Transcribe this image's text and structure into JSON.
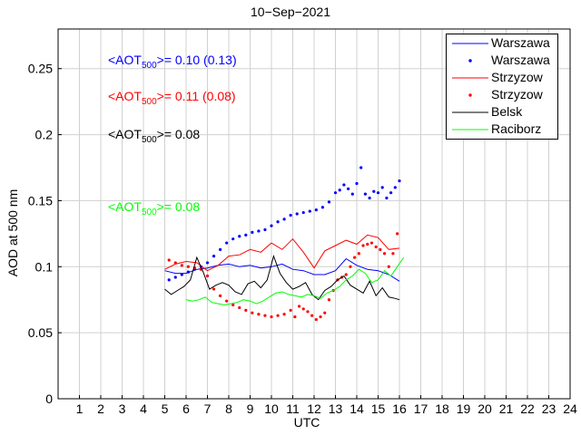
{
  "chart_data": {
    "type": "line",
    "title": "10−Sep−2021",
    "xlabel": "UTC",
    "ylabel": "AOD at 500 nm",
    "xlim": [
      0,
      24
    ],
    "ylim": [
      0,
      0.28
    ],
    "x_ticks": [
      "1",
      "2",
      "3",
      "4",
      "5",
      "6",
      "7",
      "8",
      "9",
      "10",
      "11",
      "12",
      "13",
      "14",
      "15",
      "16",
      "17",
      "18",
      "19",
      "20",
      "21",
      "22",
      "23",
      "24"
    ],
    "y_ticks": [
      "0",
      "0.05",
      "0.1",
      "0.15",
      "0.2",
      "0.25"
    ],
    "grid": true,
    "legend_position": "top-right",
    "annotations": [
      {
        "prefix": "<AOT",
        "sub": "500",
        "suffix": ">= 0.10 (0.13)",
        "color": "#0000ff"
      },
      {
        "prefix": "<AOT",
        "sub": "500",
        "suffix": ">= 0.11 (0.08)",
        "color": "#ff0000"
      },
      {
        "prefix": "<AOT",
        "sub": "500",
        "suffix": ">= 0.08",
        "color": "#000000"
      },
      {
        "prefix": "<AOT",
        "sub": "500",
        "suffix": ">= 0.08",
        "color": "#00ff00"
      }
    ],
    "series": [
      {
        "name": "Warszawa",
        "style": "line",
        "color": "#0000ff",
        "x": [
          5.0,
          5.5,
          6.0,
          6.5,
          7.0,
          7.5,
          8.0,
          8.5,
          9.0,
          9.5,
          10.0,
          10.5,
          11.0,
          11.5,
          12.0,
          12.5,
          13.0,
          13.5,
          14.0,
          14.5,
          15.0,
          15.5,
          16.0
        ],
        "y": [
          0.097,
          0.095,
          0.095,
          0.098,
          0.099,
          0.101,
          0.102,
          0.1,
          0.101,
          0.099,
          0.1,
          0.102,
          0.098,
          0.097,
          0.094,
          0.094,
          0.097,
          0.106,
          0.101,
          0.098,
          0.097,
          0.094,
          0.089
        ]
      },
      {
        "name": "Warszawa",
        "style": "dots",
        "color": "#0000ff",
        "x": [
          5.2,
          5.5,
          5.8,
          6.1,
          6.4,
          6.7,
          7.0,
          7.3,
          7.6,
          7.9,
          8.2,
          8.5,
          8.8,
          9.1,
          9.4,
          9.7,
          10.0,
          10.3,
          10.6,
          10.9,
          11.2,
          11.5,
          11.8,
          12.1,
          12.4,
          12.7,
          13.0,
          13.2,
          13.4,
          13.6,
          13.8,
          14.0,
          14.2,
          14.4,
          14.6,
          14.8,
          15.0,
          15.2,
          15.4,
          15.6,
          15.8,
          16.0
        ],
        "y": [
          0.09,
          0.092,
          0.094,
          0.096,
          0.098,
          0.1,
          0.103,
          0.108,
          0.113,
          0.118,
          0.121,
          0.123,
          0.124,
          0.126,
          0.127,
          0.128,
          0.131,
          0.134,
          0.136,
          0.139,
          0.14,
          0.141,
          0.142,
          0.143,
          0.145,
          0.149,
          0.156,
          0.158,
          0.162,
          0.159,
          0.155,
          0.163,
          0.175,
          0.155,
          0.152,
          0.157,
          0.156,
          0.16,
          0.152,
          0.156,
          0.16,
          0.165
        ]
      },
      {
        "name": "Strzyzow",
        "style": "line",
        "color": "#ff0000",
        "x": [
          5.0,
          5.5,
          6.0,
          6.5,
          7.0,
          7.5,
          8.0,
          8.5,
          9.0,
          9.5,
          10.0,
          10.5,
          11.0,
          11.5,
          12.0,
          12.5,
          13.0,
          13.5,
          14.0,
          14.5,
          15.0,
          15.5,
          16.0
        ],
        "y": [
          0.098,
          0.102,
          0.104,
          0.103,
          0.097,
          0.101,
          0.108,
          0.109,
          0.113,
          0.111,
          0.118,
          0.113,
          0.121,
          0.111,
          0.099,
          0.112,
          0.116,
          0.12,
          0.117,
          0.124,
          0.122,
          0.113,
          0.114
        ]
      },
      {
        "name": "Strzyzow",
        "style": "dots",
        "color": "#ff0000",
        "x": [
          5.2,
          5.5,
          5.8,
          6.1,
          6.4,
          6.7,
          7.0,
          7.3,
          7.6,
          7.9,
          8.2,
          8.5,
          8.8,
          9.1,
          9.4,
          9.7,
          10.0,
          10.3,
          10.6,
          10.9,
          11.1,
          11.3,
          11.5,
          11.7,
          11.9,
          12.1,
          12.3,
          12.5,
          12.7,
          12.9,
          13.1,
          13.3,
          13.5,
          13.7,
          13.9,
          14.1,
          14.3,
          14.5,
          14.7,
          14.9,
          15.1,
          15.3,
          15.5,
          15.7,
          15.9
        ],
        "y": [
          0.105,
          0.103,
          0.101,
          0.1,
          0.099,
          0.098,
          0.093,
          0.083,
          0.078,
          0.074,
          0.071,
          0.069,
          0.067,
          0.065,
          0.064,
          0.063,
          0.062,
          0.063,
          0.064,
          0.067,
          0.062,
          0.07,
          0.068,
          0.066,
          0.063,
          0.06,
          0.062,
          0.065,
          0.075,
          0.082,
          0.09,
          0.092,
          0.094,
          0.1,
          0.107,
          0.11,
          0.116,
          0.117,
          0.118,
          0.115,
          0.113,
          0.11,
          0.1,
          0.11,
          0.125
        ]
      },
      {
        "name": "Belsk",
        "style": "line",
        "color": "#000000",
        "x": [
          5.0,
          5.3,
          5.6,
          5.9,
          6.2,
          6.5,
          6.8,
          7.1,
          7.4,
          7.7,
          8.0,
          8.3,
          8.6,
          8.9,
          9.2,
          9.5,
          9.8,
          10.1,
          10.4,
          10.7,
          11.0,
          11.3,
          11.6,
          11.9,
          12.2,
          12.5,
          12.8,
          13.1,
          13.4,
          13.7,
          14.0,
          14.3,
          14.6,
          14.9,
          15.2,
          15.5,
          15.8,
          16.0
        ],
        "y": [
          0.083,
          0.079,
          0.082,
          0.085,
          0.09,
          0.107,
          0.096,
          0.083,
          0.086,
          0.088,
          0.086,
          0.081,
          0.079,
          0.087,
          0.089,
          0.084,
          0.09,
          0.108,
          0.095,
          0.088,
          0.083,
          0.085,
          0.088,
          0.079,
          0.075,
          0.082,
          0.085,
          0.09,
          0.093,
          0.086,
          0.083,
          0.08,
          0.089,
          0.078,
          0.084,
          0.077,
          0.076,
          0.075
        ]
      },
      {
        "name": "Raciborz",
        "style": "line",
        "color": "#00ff00",
        "x": [
          6.0,
          6.3,
          6.6,
          6.9,
          7.2,
          7.5,
          7.8,
          8.1,
          8.4,
          8.7,
          9.0,
          9.3,
          9.6,
          9.9,
          10.2,
          10.5,
          10.8,
          11.1,
          11.4,
          11.7,
          12.0,
          12.3,
          12.6,
          12.9,
          13.2,
          13.5,
          13.8,
          14.1,
          14.4,
          14.7,
          15.0,
          15.3,
          15.6,
          15.9,
          16.2
        ],
        "y": [
          0.075,
          0.074,
          0.075,
          0.077,
          0.073,
          0.072,
          0.071,
          0.072,
          0.073,
          0.075,
          0.074,
          0.072,
          0.074,
          0.077,
          0.08,
          0.081,
          0.079,
          0.078,
          0.077,
          0.079,
          0.078,
          0.076,
          0.08,
          0.082,
          0.085,
          0.09,
          0.093,
          0.098,
          0.095,
          0.088,
          0.09,
          0.097,
          0.093,
          0.1,
          0.107
        ]
      }
    ]
  }
}
